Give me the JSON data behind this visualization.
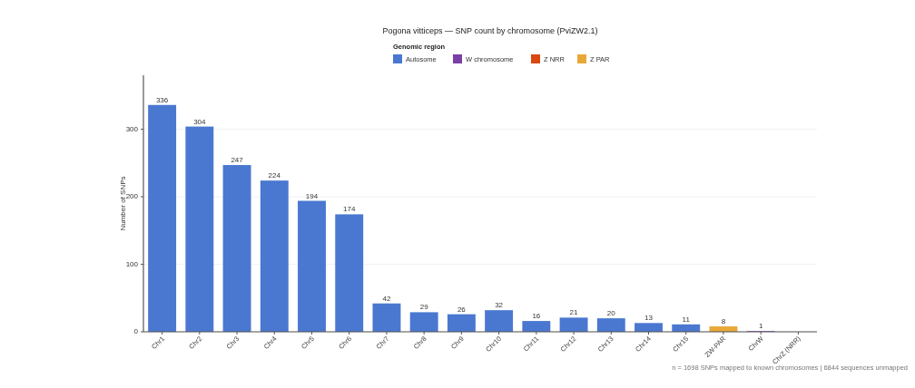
{
  "chart_data": {
    "type": "bar",
    "title": "Pogona vitticeps — SNP count by chromosome (PviZW2.1)",
    "legend_title": "Genomic region",
    "ylabel": "Number of SNPs",
    "categories": [
      "Chr1",
      "Chr2",
      "Chr3",
      "Chr4",
      "Chr5",
      "Chr6",
      "Chr7",
      "Chr8",
      "Chr9",
      "Chr10",
      "Chr11",
      "Chr12",
      "Chr13",
      "Chr14",
      "Chr15",
      "ZW-PAR",
      "ChrW",
      "ChrZ (NRR)"
    ],
    "series": [
      {
        "name": "Autosome",
        "color": "#4a78d0",
        "values": [
          336,
          304,
          247,
          224,
          194,
          174,
          42,
          29,
          26,
          32,
          16,
          21,
          20,
          13,
          11,
          null,
          null,
          null
        ],
        "value_labels": [
          "336",
          "304",
          "247",
          "224",
          "194",
          "174",
          "42",
          "29",
          "26",
          "32",
          "16",
          "21",
          "20",
          "13",
          "11",
          null,
          null,
          null
        ]
      },
      {
        "name": "W chromosome",
        "color": "#7b3fa8",
        "values": [
          null,
          null,
          null,
          null,
          null,
          null,
          null,
          null,
          null,
          null,
          null,
          null,
          null,
          null,
          null,
          null,
          1,
          null
        ],
        "value_labels": [
          null,
          null,
          null,
          null,
          null,
          null,
          null,
          null,
          null,
          null,
          null,
          null,
          null,
          null,
          null,
          null,
          "1",
          null
        ]
      },
      {
        "name": "Z NRR",
        "color": "#d9480f",
        "values": [
          null,
          null,
          null,
          null,
          null,
          null,
          null,
          null,
          null,
          null,
          null,
          null,
          null,
          null,
          null,
          null,
          null,
          0
        ],
        "value_labels": [
          null,
          null,
          null,
          null,
          null,
          null,
          null,
          null,
          null,
          null,
          null,
          null,
          null,
          null,
          null,
          null,
          null,
          null
        ]
      },
      {
        "name": "Z PAR",
        "color": "#e8a838",
        "values": [
          null,
          null,
          null,
          null,
          null,
          null,
          null,
          null,
          null,
          null,
          null,
          null,
          null,
          null,
          null,
          8,
          null,
          null
        ],
        "value_labels": [
          null,
          null,
          null,
          null,
          null,
          null,
          null,
          null,
          null,
          null,
          null,
          null,
          null,
          null,
          null,
          "8",
          null,
          null
        ]
      }
    ],
    "ylim": [
      0,
      380
    ],
    "yticks": [
      0,
      100,
      200,
      300
    ],
    "grid": "y",
    "legend": "top",
    "annotations": [
      "n = 1698 SNPs mapped to known chromosomes  |  6844 sequences unmapped"
    ]
  }
}
